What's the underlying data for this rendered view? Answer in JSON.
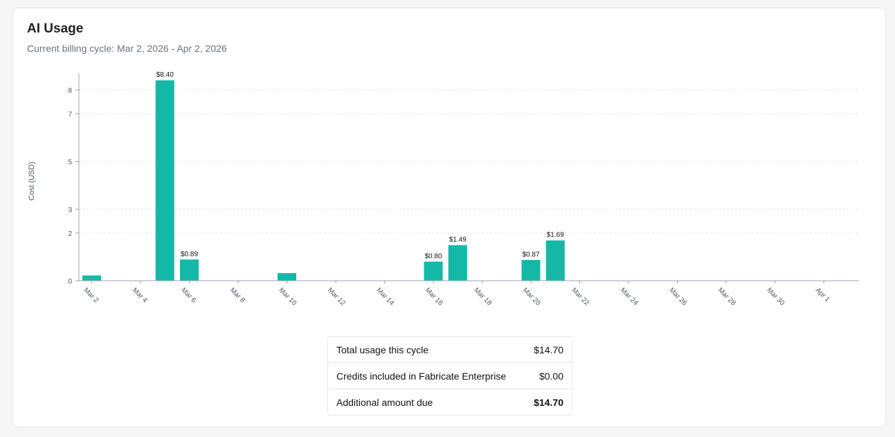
{
  "header": {
    "title": "AI Usage",
    "subtitle": "Current billing cycle: Mar 2, 2026 - Apr 2, 2026"
  },
  "colors": {
    "bar": "#14b8a6",
    "axis": "#9ca3af",
    "grid": "#e5e7eb"
  },
  "chart_data": {
    "type": "bar",
    "ylabel": "Cost (USD)",
    "xlabel": "",
    "ylim": [
      0,
      8.4
    ],
    "yticks": [
      0,
      2,
      3,
      5,
      7,
      8
    ],
    "grid": true,
    "categories": [
      "Mar 2",
      "Mar 3",
      "Mar 4",
      "Mar 5",
      "Mar 6",
      "Mar 7",
      "Mar 8",
      "Mar 9",
      "Mar 10",
      "Mar 11",
      "Mar 12",
      "Mar 13",
      "Mar 14",
      "Mar 15",
      "Mar 16",
      "Mar 17",
      "Mar 18",
      "Mar 19",
      "Mar 20",
      "Mar 21",
      "Mar 22",
      "Mar 23",
      "Mar 24",
      "Mar 25",
      "Mar 26",
      "Mar 27",
      "Mar 28",
      "Mar 29",
      "Mar 30",
      "Mar 31",
      "Apr 1",
      "Apr 2"
    ],
    "tick_labels": [
      "Mar 2",
      "Mar 4",
      "Mar 6",
      "Mar 8",
      "Mar 10",
      "Mar 12",
      "Mar 14",
      "Mar 16",
      "Mar 18",
      "Mar 20",
      "Mar 22",
      "Mar 24",
      "Mar 26",
      "Mar 28",
      "Mar 30",
      "Apr 1"
    ],
    "values": [
      0.22,
      0,
      0,
      8.4,
      0.89,
      0,
      0,
      0,
      0.32,
      0,
      0,
      0,
      0,
      0,
      0.8,
      1.49,
      0,
      0,
      0.87,
      1.69,
      0,
      0,
      0,
      0,
      0,
      0,
      0,
      0,
      0,
      0,
      0,
      0
    ],
    "data_labels": [
      "",
      "",
      "",
      "$8.40",
      "$0.89",
      "",
      "",
      "",
      "",
      "",
      "",
      "",
      "",
      "",
      "$0.80",
      "$1.49",
      "",
      "",
      "$0.87",
      "$1.69",
      "",
      "",
      "",
      "",
      "",
      "",
      "",
      "",
      "",
      "",
      "",
      ""
    ]
  },
  "summary": {
    "rows": [
      {
        "label": "Total usage this cycle",
        "value": "$14.70"
      },
      {
        "label": "Credits included in Fabricate Enterprise",
        "value": "$0.00"
      },
      {
        "label": "Additional amount due",
        "value": "$14.70"
      }
    ]
  }
}
